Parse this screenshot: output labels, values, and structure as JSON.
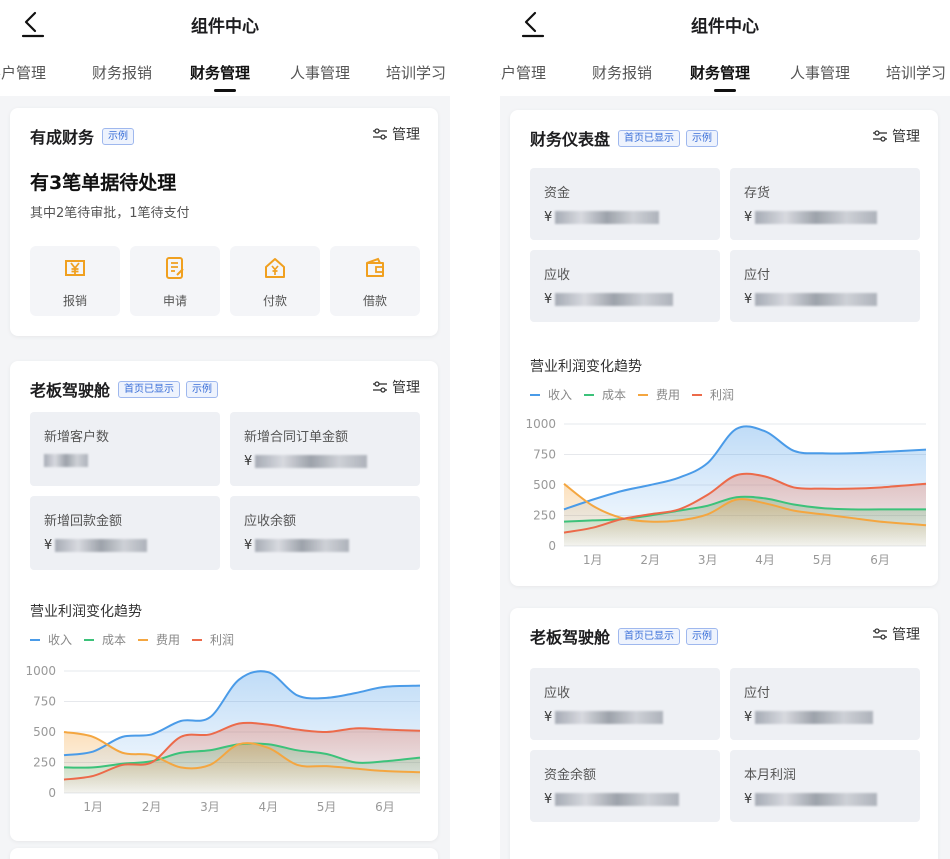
{
  "nav": {
    "title": "组件中心"
  },
  "tabs": [
    "客户管理",
    "财务报销",
    "财务管理",
    "人事管理",
    "培训学习"
  ],
  "colors": {
    "income": "#4a9be8",
    "cost": "#3cc27a",
    "expense": "#f4a640",
    "profit": "#ec6a4a",
    "badge": "#3a6fd8"
  },
  "badges": {
    "example": "示例",
    "home_shown": "首页已显示"
  },
  "manage_label": "管理",
  "finance_card": {
    "title": "有成财务",
    "pending_title": "有3笔单据待处理",
    "pending_sub": "其中2笔待审批，1笔待支付",
    "actions": [
      {
        "label": "报销",
        "icon": "yen-card-icon"
      },
      {
        "label": "申请",
        "icon": "document-icon"
      },
      {
        "label": "付款",
        "icon": "payment-house-icon"
      },
      {
        "label": "借款",
        "icon": "wallet-icon"
      }
    ]
  },
  "boss_left": {
    "title": "老板驾驶舱",
    "kpis": [
      {
        "label": "新增客户数",
        "prefix": ""
      },
      {
        "label": "新增合同订单金额",
        "prefix": "¥"
      },
      {
        "label": "新增回款金额",
        "prefix": "¥"
      },
      {
        "label": "应收余额",
        "prefix": "¥"
      }
    ]
  },
  "finance_dashboard": {
    "title": "财务仪表盘",
    "kpis": [
      {
        "label": "资金",
        "prefix": "¥"
      },
      {
        "label": "存货",
        "prefix": "¥"
      },
      {
        "label": "应收",
        "prefix": "¥"
      },
      {
        "label": "应付",
        "prefix": "¥"
      }
    ]
  },
  "boss_right": {
    "title": "老板驾驶舱",
    "kpis": [
      {
        "label": "应收",
        "prefix": "¥"
      },
      {
        "label": "应付",
        "prefix": "¥"
      },
      {
        "label": "资金余额",
        "prefix": "¥"
      },
      {
        "label": "本月利润",
        "prefix": "¥"
      }
    ]
  },
  "chart_data": [
    {
      "type": "area",
      "title": "营业利润变化趋势",
      "categories": [
        "1月",
        "2月",
        "3月",
        "4月",
        "5月",
        "6月"
      ],
      "x": [
        0.5,
        1,
        1.5,
        2,
        2.5,
        3,
        3.5,
        4,
        4.5,
        5,
        5.5,
        6,
        6.6
      ],
      "ylim": [
        0,
        1000
      ],
      "yticks": [
        0,
        250,
        500,
        750,
        1000
      ],
      "grid": true,
      "legend_position": "top-left",
      "series": [
        {
          "name": "收入",
          "color": "#4a9be8",
          "values": [
            310,
            340,
            460,
            480,
            590,
            620,
            930,
            990,
            800,
            780,
            820,
            870,
            880
          ]
        },
        {
          "name": "成本",
          "color": "#3cc27a",
          "values": [
            210,
            210,
            240,
            260,
            330,
            350,
            400,
            400,
            350,
            320,
            250,
            260,
            290
          ]
        },
        {
          "name": "费用",
          "color": "#f4a640",
          "values": [
            500,
            460,
            330,
            310,
            210,
            230,
            400,
            370,
            230,
            220,
            200,
            180,
            170
          ]
        },
        {
          "name": "利润",
          "color": "#ec6a4a",
          "values": [
            110,
            140,
            230,
            250,
            460,
            480,
            570,
            560,
            520,
            500,
            530,
            520,
            510
          ]
        }
      ]
    },
    {
      "type": "area",
      "title": "营业利润变化趋势",
      "categories": [
        "1月",
        "2月",
        "3月",
        "4月",
        "5月",
        "6月"
      ],
      "x": [
        0.5,
        1,
        1.5,
        2,
        2.5,
        3,
        3.5,
        4,
        4.5,
        5,
        5.5,
        6,
        6.8
      ],
      "ylim": [
        0,
        1000
      ],
      "yticks": [
        0,
        250,
        500,
        750,
        1000
      ],
      "grid": true,
      "legend_position": "top-left",
      "series": [
        {
          "name": "收入",
          "color": "#4a9be8",
          "values": [
            300,
            380,
            450,
            500,
            560,
            680,
            960,
            940,
            780,
            760,
            760,
            770,
            790
          ]
        },
        {
          "name": "成本",
          "color": "#3cc27a",
          "values": [
            200,
            210,
            220,
            250,
            290,
            330,
            400,
            390,
            340,
            310,
            300,
            300,
            300
          ]
        },
        {
          "name": "费用",
          "color": "#f4a640",
          "values": [
            510,
            330,
            230,
            200,
            210,
            260,
            380,
            350,
            290,
            260,
            230,
            200,
            170
          ]
        },
        {
          "name": "利润",
          "color": "#ec6a4a",
          "values": [
            110,
            150,
            220,
            260,
            300,
            420,
            580,
            570,
            480,
            470,
            470,
            480,
            510
          ]
        }
      ]
    }
  ]
}
